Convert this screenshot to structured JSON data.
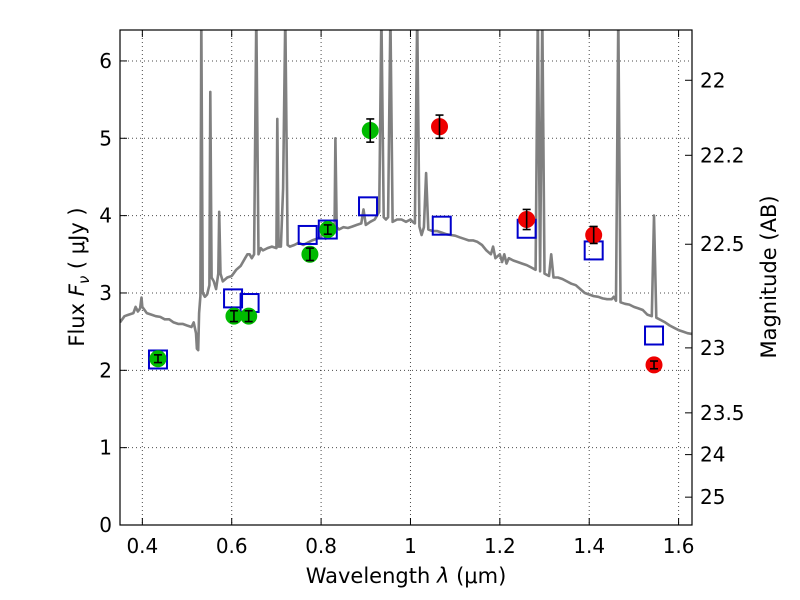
{
  "chart_data": {
    "type": "scatter",
    "xlabel_prefix": "Wavelength",
    "xlabel_symbol": "λ",
    "xlabel_unit": "(μm)",
    "ylabel_prefix": "Flux",
    "ylabel_symbol": "F",
    "ylabel_subscript": "ν",
    "ylabel_unit": "( μJy )",
    "y2label": "Magnitude (AB)",
    "xlim": [
      0.35,
      1.63
    ],
    "ylim": [
      0,
      6.4
    ],
    "grid": true,
    "x_ticks": [
      "0.4",
      "0.6",
      "0.8",
      "1",
      "1.2",
      "1.4",
      "1.6"
    ],
    "y_ticks": [
      "0",
      "1",
      "2",
      "3",
      "4",
      "5",
      "6"
    ],
    "y2_ticks": [
      {
        "label": "22",
        "flux": 5.75
      },
      {
        "label": "22.2",
        "flux": 4.78
      },
      {
        "label": "22.5",
        "flux": 3.63
      },
      {
        "label": "23",
        "flux": 2.29
      },
      {
        "label": "23.5",
        "flux": 1.45
      },
      {
        "label": "24",
        "flux": 0.91
      },
      {
        "label": "25",
        "flux": 0.36
      }
    ],
    "colors": {
      "spectrum": "#808080",
      "model": "#0000cc",
      "green_points": "#00bb00",
      "red_points": "#ee0000",
      "error_bars": "#000000"
    },
    "spectrum": [
      [
        0.35,
        2.62
      ],
      [
        0.36,
        2.7
      ],
      [
        0.37,
        2.72
      ],
      [
        0.38,
        2.74
      ],
      [
        0.385,
        2.82
      ],
      [
        0.39,
        2.76
      ],
      [
        0.395,
        2.8
      ],
      [
        0.398,
        2.94
      ],
      [
        0.4,
        2.82
      ],
      [
        0.41,
        2.74
      ],
      [
        0.42,
        2.72
      ],
      [
        0.43,
        2.7
      ],
      [
        0.44,
        2.69
      ],
      [
        0.45,
        2.66
      ],
      [
        0.46,
        2.66
      ],
      [
        0.47,
        2.62
      ],
      [
        0.48,
        2.6
      ],
      [
        0.49,
        2.6
      ],
      [
        0.5,
        2.58
      ],
      [
        0.51,
        2.56
      ],
      [
        0.515,
        2.62
      ],
      [
        0.52,
        2.48
      ],
      [
        0.522,
        2.28
      ],
      [
        0.525,
        2.26
      ],
      [
        0.527,
        2.74
      ],
      [
        0.53,
        2.96
      ],
      [
        0.532,
        6.6
      ],
      [
        0.535,
        3.0
      ],
      [
        0.54,
        2.95
      ],
      [
        0.545,
        2.98
      ],
      [
        0.55,
        3.1
      ],
      [
        0.552,
        5.6
      ],
      [
        0.555,
        3.2
      ],
      [
        0.56,
        3.15
      ],
      [
        0.565,
        3.05
      ],
      [
        0.57,
        3.25
      ],
      [
        0.572,
        4.05
      ],
      [
        0.575,
        3.25
      ],
      [
        0.58,
        3.15
      ],
      [
        0.59,
        3.2
      ],
      [
        0.6,
        3.22
      ],
      [
        0.61,
        3.3
      ],
      [
        0.62,
        3.35
      ],
      [
        0.63,
        3.45
      ],
      [
        0.635,
        3.5
      ],
      [
        0.64,
        3.5
      ],
      [
        0.645,
        3.45
      ],
      [
        0.65,
        3.5
      ],
      [
        0.655,
        6.6
      ],
      [
        0.66,
        3.5
      ],
      [
        0.665,
        3.58
      ],
      [
        0.67,
        3.55
      ],
      [
        0.68,
        3.58
      ],
      [
        0.69,
        3.6
      ],
      [
        0.7,
        3.58
      ],
      [
        0.702,
        5.25
      ],
      [
        0.705,
        3.6
      ],
      [
        0.71,
        3.6
      ],
      [
        0.715,
        4.35
      ],
      [
        0.72,
        6.6
      ],
      [
        0.725,
        3.62
      ],
      [
        0.73,
        3.6
      ],
      [
        0.74,
        3.62
      ],
      [
        0.75,
        3.65
      ],
      [
        0.76,
        3.62
      ],
      [
        0.77,
        3.65
      ],
      [
        0.78,
        3.68
      ],
      [
        0.79,
        3.7
      ],
      [
        0.8,
        3.72
      ],
      [
        0.805,
        3.85
      ],
      [
        0.81,
        3.7
      ],
      [
        0.82,
        3.75
      ],
      [
        0.83,
        3.78
      ],
      [
        0.832,
        5.0
      ],
      [
        0.835,
        3.85
      ],
      [
        0.84,
        3.82
      ],
      [
        0.85,
        3.85
      ],
      [
        0.86,
        3.84
      ],
      [
        0.87,
        3.86
      ],
      [
        0.88,
        3.88
      ],
      [
        0.89,
        3.9
      ],
      [
        0.895,
        4.08
      ],
      [
        0.9,
        3.88
      ],
      [
        0.905,
        3.9
      ],
      [
        0.91,
        3.92
      ],
      [
        0.92,
        3.95
      ],
      [
        0.93,
        4.05
      ],
      [
        0.935,
        6.6
      ],
      [
        0.94,
        3.98
      ],
      [
        0.945,
        3.95
      ],
      [
        0.95,
        3.98
      ],
      [
        0.955,
        6.6
      ],
      [
        0.96,
        3.92
      ],
      [
        0.97,
        3.95
      ],
      [
        0.98,
        3.95
      ],
      [
        0.99,
        3.92
      ],
      [
        1.0,
        3.95
      ],
      [
        1.005,
        3.92
      ],
      [
        1.01,
        3.9
      ],
      [
        1.015,
        6.6
      ],
      [
        1.02,
        3.86
      ],
      [
        1.025,
        3.75
      ],
      [
        1.03,
        3.85
      ],
      [
        1.035,
        4.55
      ],
      [
        1.04,
        3.82
      ],
      [
        1.05,
        3.8
      ],
      [
        1.06,
        3.8
      ],
      [
        1.07,
        3.78
      ],
      [
        1.08,
        3.76
      ],
      [
        1.09,
        3.75
      ],
      [
        1.1,
        3.74
      ],
      [
        1.11,
        3.72
      ],
      [
        1.12,
        3.7
      ],
      [
        1.13,
        3.68
      ],
      [
        1.14,
        3.68
      ],
      [
        1.15,
        3.66
      ],
      [
        1.16,
        3.62
      ],
      [
        1.17,
        3.55
      ],
      [
        1.18,
        3.5
      ],
      [
        1.185,
        3.6
      ],
      [
        1.19,
        3.45
      ],
      [
        1.2,
        3.5
      ],
      [
        1.205,
        3.4
      ],
      [
        1.21,
        3.5
      ],
      [
        1.215,
        3.38
      ],
      [
        1.22,
        3.45
      ],
      [
        1.23,
        3.42
      ],
      [
        1.24,
        3.4
      ],
      [
        1.25,
        3.38
      ],
      [
        1.26,
        3.36
      ],
      [
        1.27,
        3.33
      ],
      [
        1.28,
        3.3
      ],
      [
        1.285,
        6.6
      ],
      [
        1.29,
        3.28
      ],
      [
        1.295,
        6.6
      ],
      [
        1.3,
        3.25
      ],
      [
        1.31,
        3.22
      ],
      [
        1.315,
        3.5
      ],
      [
        1.32,
        3.2
      ],
      [
        1.33,
        3.2
      ],
      [
        1.34,
        3.18
      ],
      [
        1.35,
        3.15
      ],
      [
        1.36,
        3.12
      ],
      [
        1.37,
        3.1
      ],
      [
        1.38,
        3.05
      ],
      [
        1.39,
        3.0
      ],
      [
        1.4,
        2.98
      ],
      [
        1.41,
        2.96
      ],
      [
        1.42,
        2.95
      ],
      [
        1.43,
        2.93
      ],
      [
        1.44,
        2.92
      ],
      [
        1.45,
        2.92
      ],
      [
        1.455,
        2.95
      ],
      [
        1.46,
        2.9
      ],
      [
        1.465,
        6.6
      ],
      [
        1.47,
        2.88
      ],
      [
        1.48,
        2.86
      ],
      [
        1.49,
        2.85
      ],
      [
        1.5,
        2.82
      ],
      [
        1.51,
        2.8
      ],
      [
        1.52,
        2.78
      ],
      [
        1.53,
        2.72
      ],
      [
        1.54,
        2.7
      ],
      [
        1.545,
        4.0
      ],
      [
        1.55,
        2.68
      ],
      [
        1.56,
        2.65
      ],
      [
        1.57,
        2.62
      ],
      [
        1.58,
        2.58
      ],
      [
        1.59,
        2.55
      ],
      [
        1.6,
        2.52
      ],
      [
        1.61,
        2.5
      ],
      [
        1.62,
        2.48
      ],
      [
        1.63,
        2.47
      ]
    ],
    "model_points": [
      {
        "x": 0.435,
        "y": 2.14
      },
      {
        "x": 0.603,
        "y": 2.93
      },
      {
        "x": 0.64,
        "y": 2.87
      },
      {
        "x": 0.77,
        "y": 3.75
      },
      {
        "x": 0.815,
        "y": 3.82
      },
      {
        "x": 0.905,
        "y": 4.12
      },
      {
        "x": 1.07,
        "y": 3.87
      },
      {
        "x": 1.26,
        "y": 3.83
      },
      {
        "x": 1.41,
        "y": 3.55
      },
      {
        "x": 1.545,
        "y": 2.45
      }
    ],
    "green_points": [
      {
        "x": 0.435,
        "y": 2.15,
        "err": 0.05
      },
      {
        "x": 0.605,
        "y": 2.7,
        "err": 0.07
      },
      {
        "x": 0.638,
        "y": 2.7,
        "err": 0.07
      },
      {
        "x": 0.775,
        "y": 3.5,
        "err": 0.08
      },
      {
        "x": 0.815,
        "y": 3.82,
        "err": 0.06
      },
      {
        "x": 0.91,
        "y": 5.1,
        "err": 0.15
      }
    ],
    "red_points": [
      {
        "x": 1.065,
        "y": 5.15,
        "err": 0.15
      },
      {
        "x": 1.26,
        "y": 3.95,
        "err": 0.13
      },
      {
        "x": 1.41,
        "y": 3.75,
        "err": 0.11
      },
      {
        "x": 1.545,
        "y": 2.07,
        "err": 0.05
      }
    ]
  }
}
